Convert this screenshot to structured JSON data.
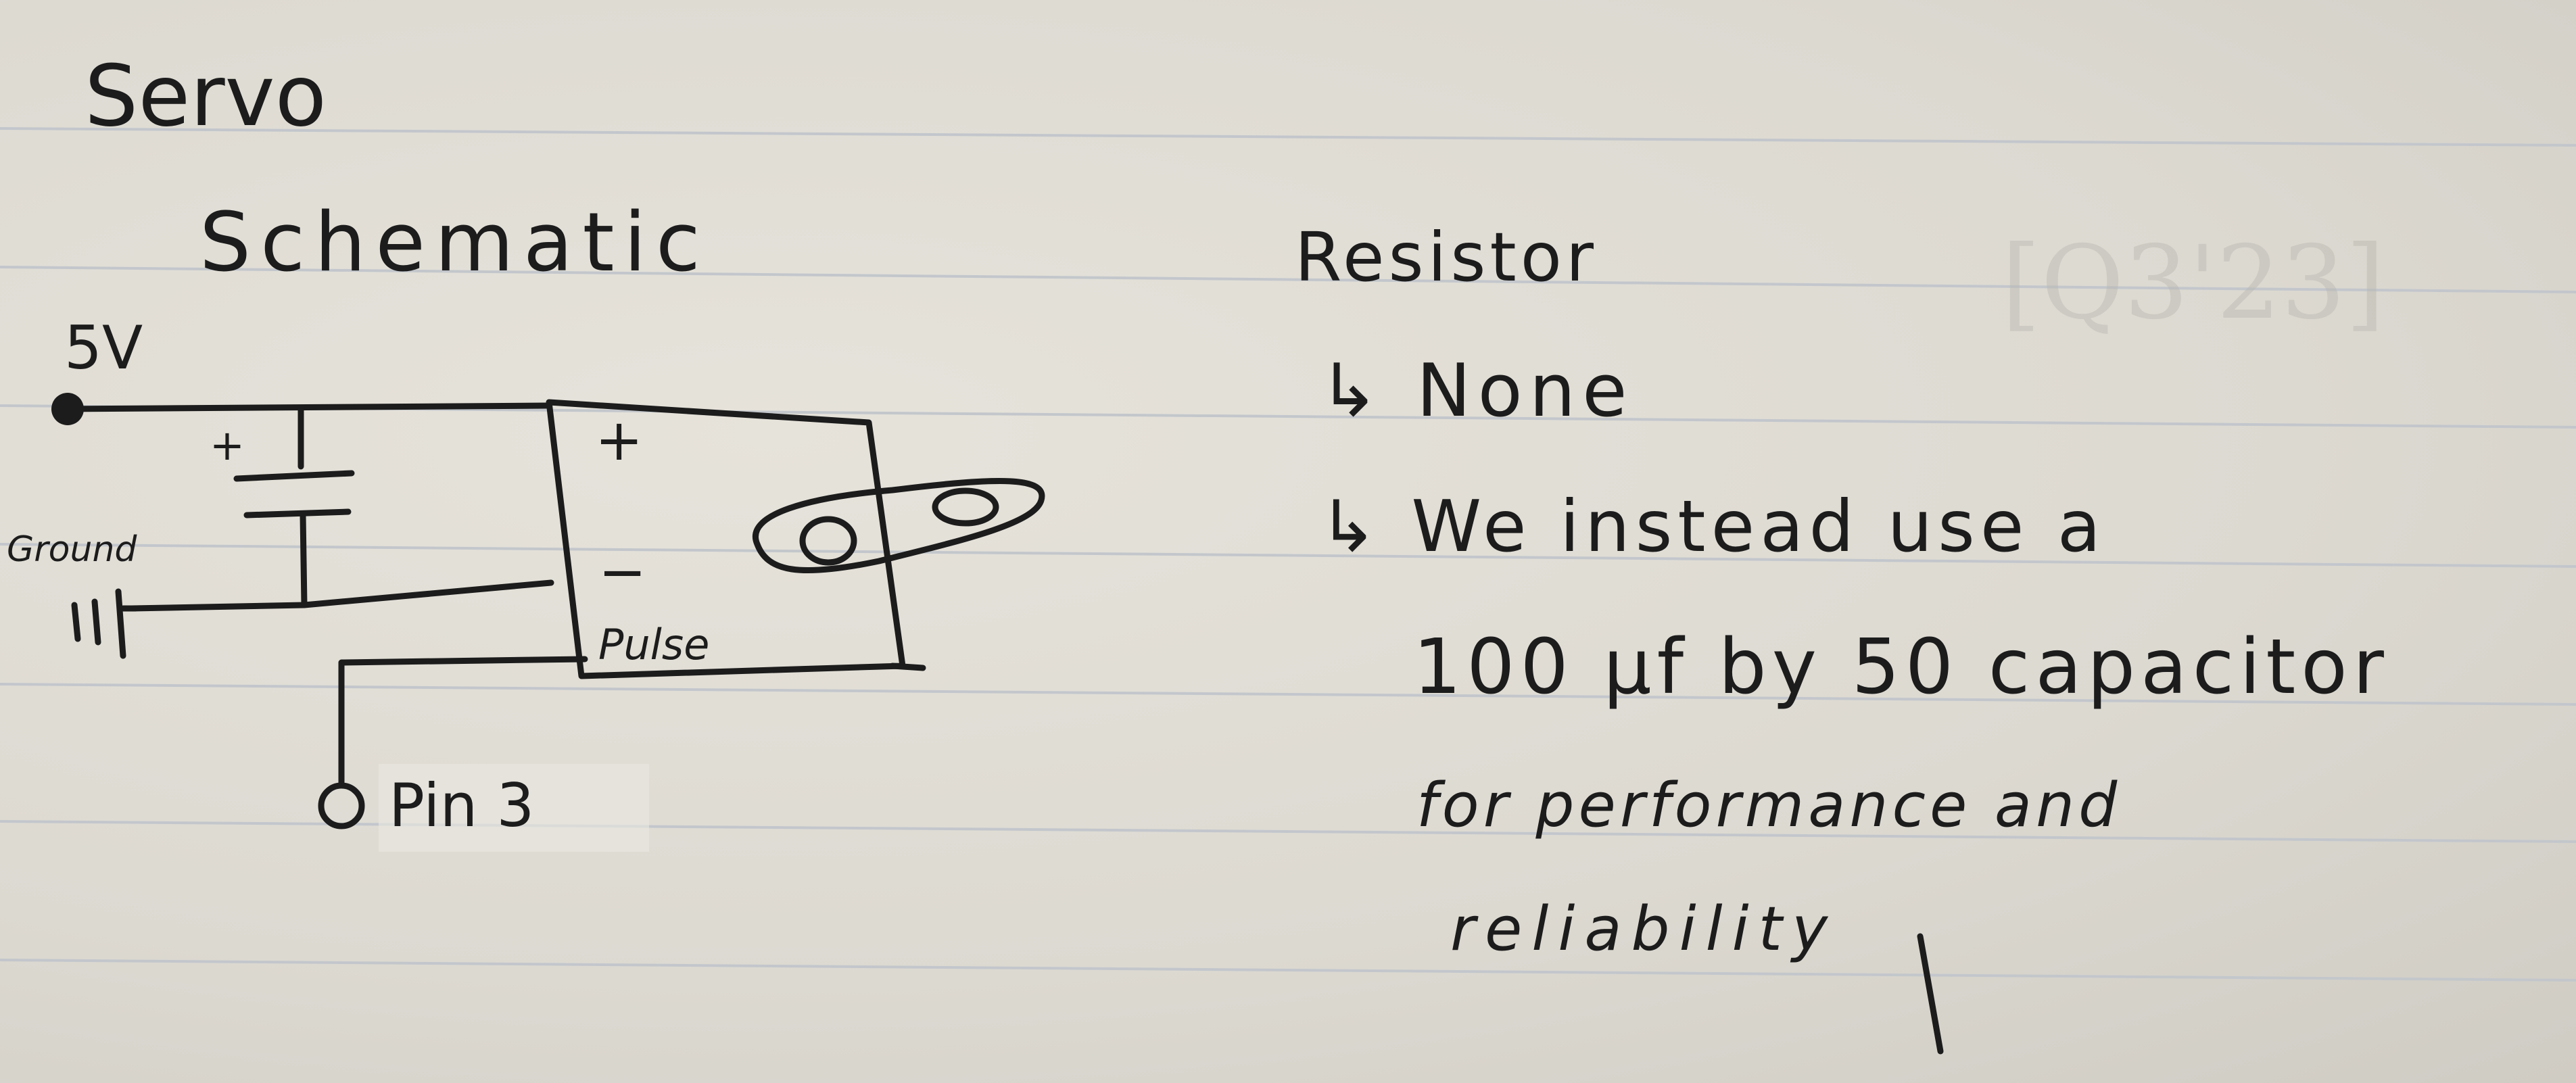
{
  "page": {
    "title_line1": "Servo",
    "title_line2": "Schematic",
    "ghost_text": "[Q3'23]"
  },
  "schematic": {
    "supply_label": "5V",
    "ground_label": "Ground",
    "capacitor_plus": "+",
    "servo_plus": "+",
    "servo_minus": "−",
    "servo_pulse": "Pulse",
    "pin_label": "Pin 3"
  },
  "notes": {
    "heading": "Resistor",
    "bullet_1": "↳ None",
    "bullet_2": "↳ We instead use a",
    "line_3": "100 µf by 50 capacitor",
    "line_4": "for performance and",
    "line_5": "reliability"
  },
  "colors": {
    "ink": "#1c1c1c",
    "paper": "#dedbd3",
    "rule_lines": "#c3c7cc"
  }
}
